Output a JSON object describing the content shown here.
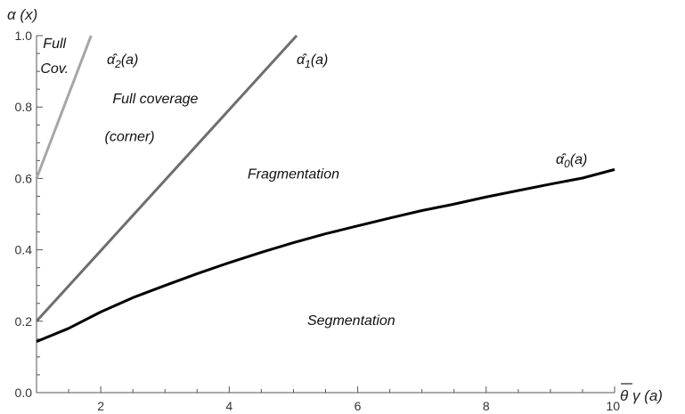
{
  "chart_data": {
    "type": "line",
    "xlabel": "θ γ (a)",
    "ylabel": "α (x)",
    "xlim": [
      1,
      10
    ],
    "ylim": [
      0,
      1
    ],
    "xticks": [
      "2",
      "4",
      "6",
      "8",
      "10"
    ],
    "yticks": [
      "0.0",
      "0.2",
      "0.4",
      "0.6",
      "0.8",
      "1.0"
    ],
    "grid": false,
    "series": [
      {
        "name": "α̂₀(a)",
        "label_base": "α̂",
        "label_sub": "0",
        "label_tail": "(a)",
        "color": "#000000",
        "x": [
          1,
          1.5,
          2,
          2.5,
          3,
          3.5,
          4,
          4.5,
          5,
          5.5,
          6,
          6.5,
          7,
          7.5,
          8,
          8.5,
          9,
          9.5,
          10
        ],
        "y": [
          0.143,
          0.18,
          0.226,
          0.266,
          0.3,
          0.333,
          0.364,
          0.393,
          0.42,
          0.445,
          0.467,
          0.489,
          0.51,
          0.528,
          0.548,
          0.566,
          0.584,
          0.601,
          0.625
        ]
      },
      {
        "name": "α̂₁(a)",
        "label_base": "α̂",
        "label_sub": "1",
        "label_tail": "(a)",
        "color": "#6e6e6e",
        "x": [
          1,
          5.05
        ],
        "y": [
          0.2,
          1.0
        ]
      },
      {
        "name": "α̂₂(a)",
        "label_base": "α̂",
        "label_sub": "2",
        "label_tail": "(a)",
        "color": "#a6a6a6",
        "x": [
          1,
          1.85
        ],
        "y": [
          0.6,
          1.0
        ]
      }
    ],
    "annotations": [
      {
        "text": "Full",
        "x": 1.28,
        "y": 0.965
      },
      {
        "text": "Cov.",
        "x": 1.28,
        "y": 0.895
      },
      {
        "text": "Full coverage",
        "x": 2.85,
        "y": 0.81
      },
      {
        "text": "(corner)",
        "x": 2.45,
        "y": 0.705
      },
      {
        "text": "Fragmentation",
        "x": 5.0,
        "y": 0.6
      },
      {
        "text": "Segmentation",
        "x": 5.9,
        "y": 0.19
      }
    ]
  }
}
